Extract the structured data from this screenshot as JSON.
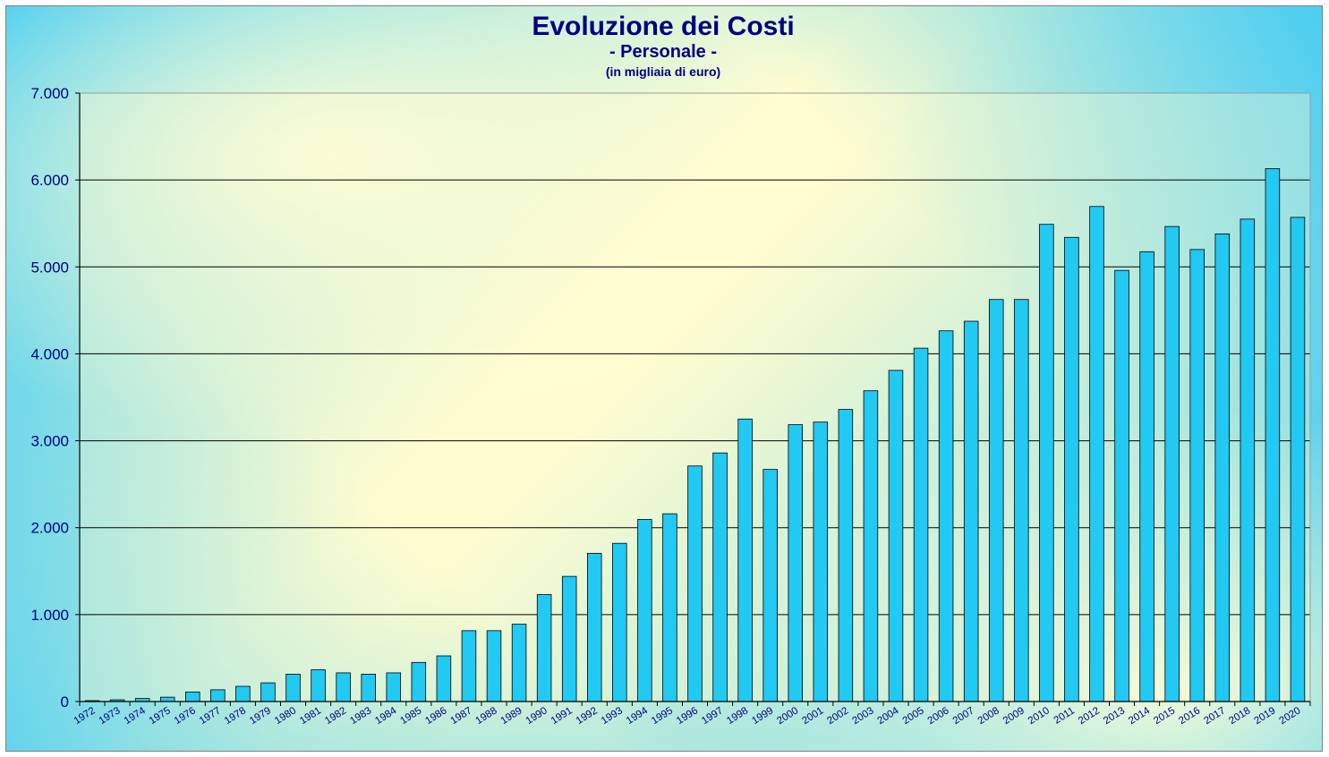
{
  "chart_data": {
    "type": "bar",
    "title": "Evoluzione dei Costi",
    "subtitle": "- Personale -",
    "unit_note": "(in migliaia di euro)",
    "categories": [
      "1972",
      "1973",
      "1974",
      "1975",
      "1976",
      "1977",
      "1978",
      "1979",
      "1980",
      "1981",
      "1982",
      "1983",
      "1984",
      "1985",
      "1986",
      "1987",
      "1988",
      "1989",
      "1990",
      "1991",
      "1992",
      "1993",
      "1994",
      "1995",
      "1996",
      "1997",
      "1998",
      "1999",
      "2000",
      "2001",
      "2002",
      "2003",
      "2004",
      "2005",
      "2006",
      "2007",
      "2008",
      "2009",
      "2010",
      "2011",
      "2012",
      "2013",
      "2014",
      "2015",
      "2016",
      "2017",
      "2018",
      "2019",
      "2020"
    ],
    "values": [
      10,
      20,
      35,
      50,
      110,
      135,
      175,
      215,
      315,
      365,
      330,
      315,
      330,
      450,
      525,
      815,
      815,
      890,
      1230,
      1440,
      1705,
      1820,
      2095,
      2160,
      2710,
      2860,
      3250,
      2670,
      3185,
      3215,
      3360,
      3575,
      3810,
      4065,
      4265,
      4375,
      4625,
      4625,
      5490,
      5340,
      5695,
      4960,
      5175,
      5465,
      5200,
      5380,
      5550,
      6130,
      5570
    ],
    "ylim": [
      0,
      7000
    ],
    "yticks": [
      0,
      1000,
      2000,
      3000,
      4000,
      5000,
      6000,
      7000
    ],
    "ytick_labels": [
      "0",
      "1.000",
      "2.000",
      "3.000",
      "4.000",
      "5.000",
      "6.000",
      "7.000"
    ],
    "xlabel": "",
    "ylabel": "",
    "grid": true,
    "legend": false,
    "colors": {
      "bar_fill": "#22c9f2",
      "bar_stroke": "#000000",
      "title": "#000080",
      "gridline": "#000000",
      "plot_bg": "#fffdd2"
    }
  }
}
